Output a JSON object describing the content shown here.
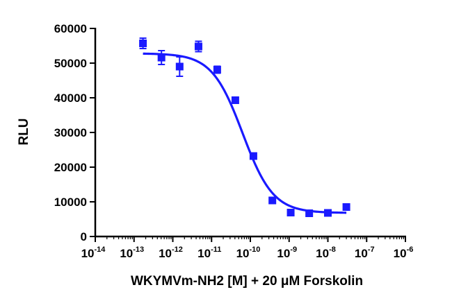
{
  "chart_data": {
    "type": "scatter",
    "title": "",
    "xlabel": "WKYMVm-NH2 [M] + 20 μM Forskolin",
    "ylabel": "RLU",
    "x_scale": "log10",
    "xlim": [
      1e-14,
      1e-06
    ],
    "ylim": [
      0,
      60000
    ],
    "x_ticks": [
      "10",
      "10",
      "10",
      "10",
      "10",
      "10",
      "10",
      "10",
      "10"
    ],
    "x_tick_exponents": [
      "-14",
      "-13",
      "-12",
      "-11",
      "-10",
      "-9",
      "-8",
      "-7",
      "-6"
    ],
    "x_tick_values": [
      1e-14,
      1e-13,
      1e-12,
      1e-11,
      1e-10,
      1e-09,
      1e-08,
      1e-07,
      1e-06
    ],
    "y_ticks": [
      "0",
      "10000",
      "20000",
      "30000",
      "40000",
      "50000",
      "60000"
    ],
    "y_tick_values": [
      0,
      10000,
      20000,
      30000,
      40000,
      50000,
      60000
    ],
    "grid": false,
    "legend": "none",
    "color": "#1a1aff",
    "series": [
      {
        "x": [
          1.7e-13,
          5.1e-13,
          1.5e-12,
          4.6e-12,
          1.4e-11,
          4.1e-11,
          1.2e-10,
          3.7e-10,
          1.1e-09,
          3.3e-09,
          1e-08,
          3e-08
        ],
        "y": [
          55700,
          51600,
          49000,
          54800,
          48100,
          39300,
          23200,
          10400,
          6900,
          6700,
          6800,
          8500
        ],
        "error": [
          1500,
          2000,
          2800,
          1500,
          1000,
          600,
          800,
          600,
          600,
          400,
          500,
          700
        ]
      }
    ],
    "fit": {
      "model": "four-parameter logistic",
      "top": 52800,
      "bottom": 6800,
      "log_ic50": -10.2,
      "hill_slope": -1.1,
      "x_range": [
        1.7e-13,
        3e-08
      ]
    }
  }
}
